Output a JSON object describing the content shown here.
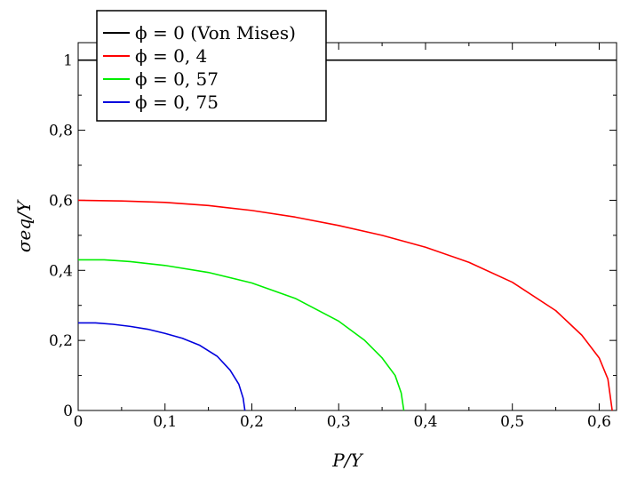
{
  "chart_data": {
    "type": "line",
    "xlabel": "P/Y",
    "ylabel": "σeq/Y",
    "xlim": [
      0,
      0.62
    ],
    "ylim": [
      0,
      1.05
    ],
    "x_ticks": [
      0,
      0.1,
      0.2,
      0.3,
      0.4,
      0.5,
      0.6
    ],
    "x_tick_labels": [
      "0",
      "0,1",
      "0,2",
      "0,3",
      "0,4",
      "0,5",
      "0,6"
    ],
    "y_ticks": [
      0,
      0.2,
      0.4,
      0.6,
      0.8,
      1
    ],
    "y_tick_labels": [
      "0",
      "0,2",
      "0,4",
      "0,6",
      "0,8",
      "1"
    ],
    "grid": false,
    "legend_position": "top-left",
    "series": [
      {
        "name": "ϕ = 0 (Von Mises)",
        "color": "#000000",
        "x": [
          0,
          0.62
        ],
        "y": [
          1,
          1
        ]
      },
      {
        "name": "ϕ = 0, 4",
        "color": "#ff0000",
        "x": [
          0,
          0.05,
          0.1,
          0.15,
          0.2,
          0.25,
          0.3,
          0.35,
          0.4,
          0.45,
          0.5,
          0.55,
          0.58,
          0.6,
          0.61,
          0.615
        ],
        "y": [
          0.6,
          0.598,
          0.594,
          0.585,
          0.571,
          0.552,
          0.528,
          0.5,
          0.466,
          0.423,
          0.366,
          0.285,
          0.215,
          0.15,
          0.09,
          0
        ]
      },
      {
        "name": "ϕ = 0, 57",
        "color": "#00ee00",
        "x": [
          0,
          0.03,
          0.06,
          0.1,
          0.15,
          0.2,
          0.25,
          0.3,
          0.33,
          0.35,
          0.365,
          0.372,
          0.375
        ],
        "y": [
          0.43,
          0.43,
          0.425,
          0.414,
          0.394,
          0.364,
          0.32,
          0.255,
          0.2,
          0.15,
          0.1,
          0.05,
          0
        ]
      },
      {
        "name": "ϕ = 0, 75",
        "color": "#0000dd",
        "x": [
          0,
          0.02,
          0.04,
          0.06,
          0.08,
          0.1,
          0.12,
          0.14,
          0.16,
          0.175,
          0.185,
          0.19,
          0.192
        ],
        "y": [
          0.25,
          0.25,
          0.246,
          0.24,
          0.232,
          0.22,
          0.206,
          0.186,
          0.155,
          0.115,
          0.075,
          0.035,
          0
        ]
      }
    ]
  }
}
